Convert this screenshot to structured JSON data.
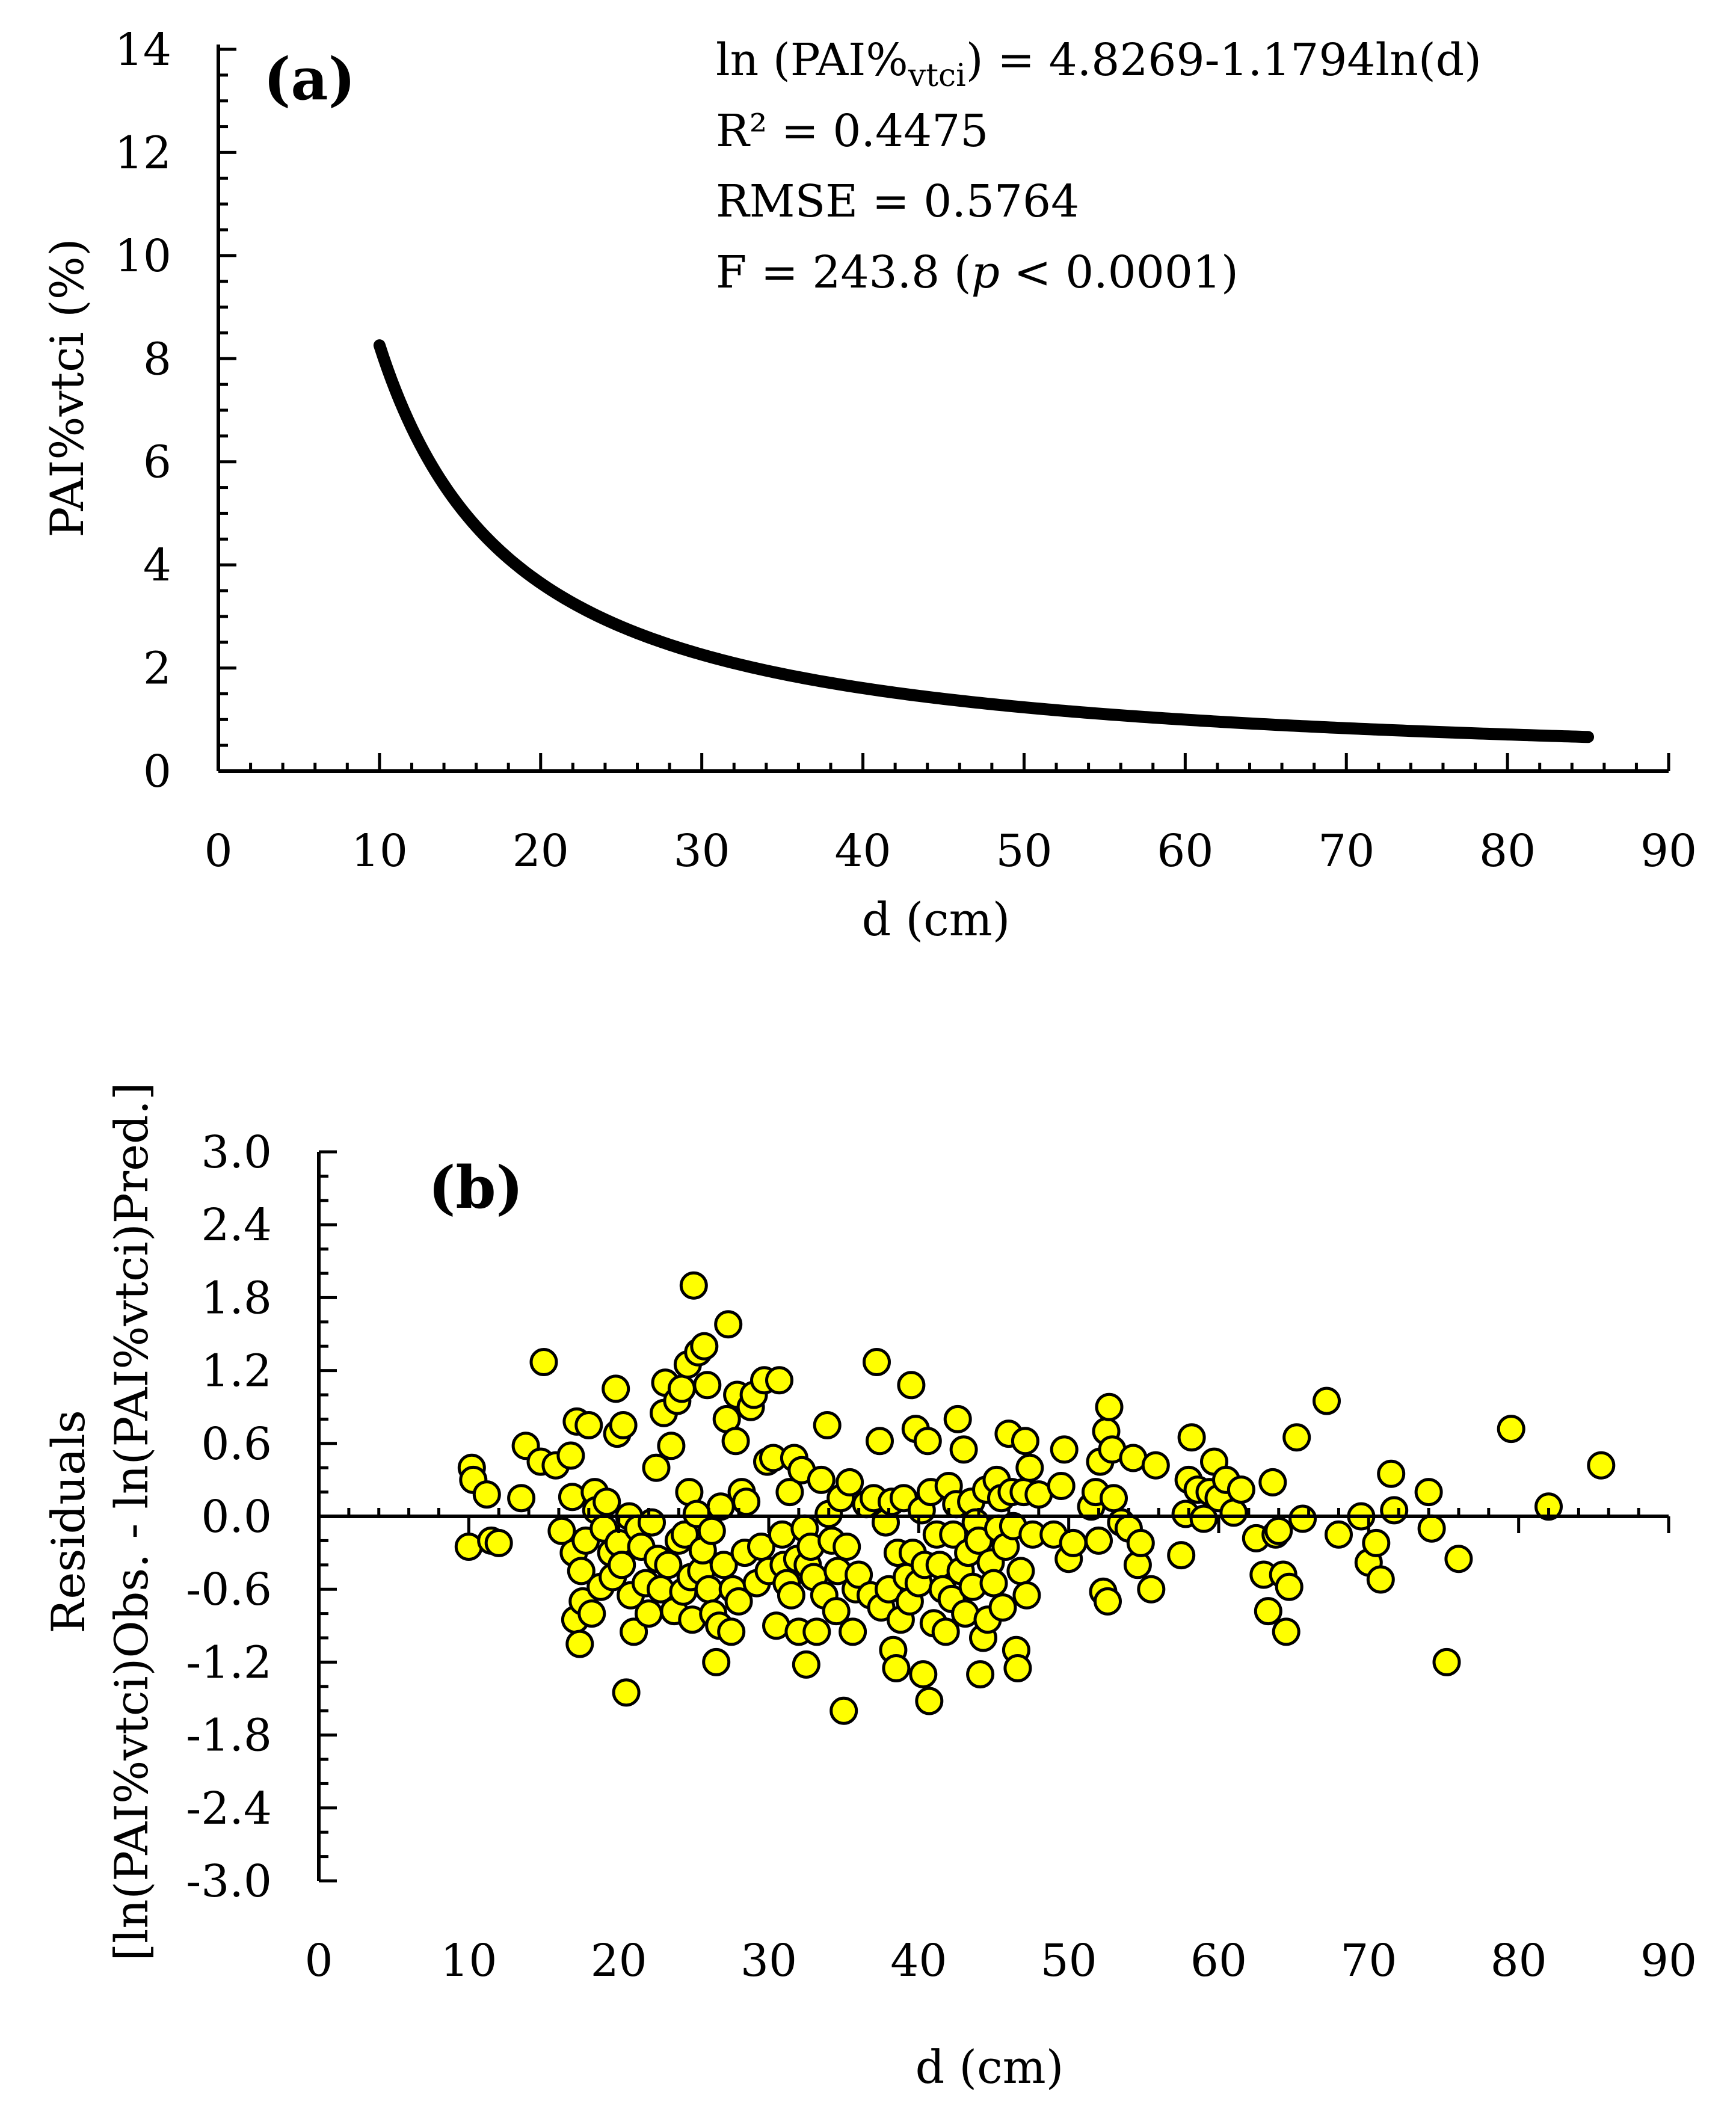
{
  "chart_data": [
    {
      "type": "line",
      "panel_label": "(a)",
      "xlabel": "d (cm)",
      "ylabel": "PAI%vtci (%)",
      "xlim": [
        0,
        90
      ],
      "ylim": [
        0,
        14
      ],
      "x_ticks": [
        "0",
        "10",
        "20",
        "30",
        "40",
        "50",
        "60",
        "70",
        "80",
        "90"
      ],
      "y_ticks": [
        "0",
        "2",
        "4",
        "6",
        "8",
        "10",
        "12",
        "14"
      ],
      "model": {
        "intercept": 4.8269,
        "slope": -1.1794,
        "d_min": 10,
        "d_max": 85
      },
      "annotations": {
        "equation_prefix": "ln (PAI%",
        "equation_sub": "vtci",
        "equation_suffix": ") = 4.8269-1.1794ln(d)",
        "r2": "R² = 0.4475",
        "rmse": "RMSE = 0.5764",
        "f_prefix": "F = 243.8 (",
        "f_p": "p",
        "f_suffix": " < 0.0001)"
      }
    },
    {
      "type": "scatter",
      "panel_label": "(b)",
      "xlabel": "d (cm)",
      "ylabel_line1": "Residuals",
      "ylabel_line2": "[ln(PAI%vtci)Obs. - ln(PAI%vtci)Pred.]",
      "xlim": [
        0,
        90
      ],
      "ylim": [
        -3.0,
        3.0
      ],
      "x_ticks": [
        "0",
        "10",
        "20",
        "30",
        "40",
        "50",
        "60",
        "70",
        "80",
        "90"
      ],
      "y_ticks": [
        "3.0",
        "2.4",
        "1.8",
        "1.2",
        "0.6",
        "0.0",
        "-0.6",
        "-1.2",
        "-1.8",
        "-2.4",
        "-3.0"
      ],
      "point_color": "#ffff00",
      "points": [
        [
          10.0,
          -0.25
        ],
        [
          10.2,
          0.4
        ],
        [
          10.3,
          0.3
        ],
        [
          11.2,
          0.18
        ],
        [
          11.5,
          -0.2
        ],
        [
          12.0,
          -0.22
        ],
        [
          13.5,
          0.15
        ],
        [
          13.8,
          0.58
        ],
        [
          14.8,
          0.45
        ],
        [
          15.0,
          1.27
        ],
        [
          15.8,
          0.42
        ],
        [
          16.2,
          -0.12
        ],
        [
          16.8,
          0.5
        ],
        [
          16.9,
          0.16
        ],
        [
          17.0,
          -0.3
        ],
        [
          17.1,
          -0.85
        ],
        [
          17.2,
          0.78
        ],
        [
          17.4,
          -1.05
        ],
        [
          17.5,
          -0.45
        ],
        [
          17.6,
          -0.7
        ],
        [
          17.8,
          -0.2
        ],
        [
          18.0,
          0.75
        ],
        [
          18.2,
          -0.8
        ],
        [
          18.4,
          0.2
        ],
        [
          18.5,
          0.05
        ],
        [
          18.8,
          -0.58
        ],
        [
          19.0,
          -0.1
        ],
        [
          19.2,
          0.12
        ],
        [
          19.5,
          -0.3
        ],
        [
          19.6,
          -0.5
        ],
        [
          19.8,
          1.05
        ],
        [
          19.9,
          0.68
        ],
        [
          20.0,
          -0.22
        ],
        [
          20.2,
          -0.4
        ],
        [
          20.3,
          0.75
        ],
        [
          20.5,
          -1.45
        ],
        [
          20.7,
          0.0
        ],
        [
          20.8,
          -0.65
        ],
        [
          21.0,
          -0.95
        ],
        [
          21.3,
          -0.1
        ],
        [
          21.5,
          -0.25
        ],
        [
          21.8,
          -0.55
        ],
        [
          22.0,
          -0.8
        ],
        [
          22.2,
          -0.05
        ],
        [
          22.5,
          0.4
        ],
        [
          22.6,
          -0.35
        ],
        [
          22.8,
          -0.6
        ],
        [
          23.0,
          0.85
        ],
        [
          23.1,
          1.1
        ],
        [
          23.3,
          -0.4
        ],
        [
          23.5,
          0.58
        ],
        [
          23.7,
          -0.78
        ],
        [
          23.9,
          0.95
        ],
        [
          24.0,
          -0.2
        ],
        [
          24.2,
          1.05
        ],
        [
          24.3,
          -0.62
        ],
        [
          24.4,
          -0.15
        ],
        [
          24.6,
          1.25
        ],
        [
          24.7,
          0.2
        ],
        [
          24.8,
          -0.5
        ],
        [
          24.9,
          -0.85
        ],
        [
          25.0,
          1.9
        ],
        [
          25.2,
          0.02
        ],
        [
          25.3,
          1.35
        ],
        [
          25.5,
          -0.45
        ],
        [
          25.6,
          -0.28
        ],
        [
          25.7,
          1.4
        ],
        [
          25.9,
          1.08
        ],
        [
          26.0,
          -0.6
        ],
        [
          26.2,
          -0.12
        ],
        [
          26.3,
          -0.8
        ],
        [
          26.5,
          -1.2
        ],
        [
          26.7,
          -0.9
        ],
        [
          26.8,
          0.08
        ],
        [
          27.0,
          -0.4
        ],
        [
          27.2,
          0.8
        ],
        [
          27.3,
          1.58
        ],
        [
          27.5,
          -0.95
        ],
        [
          27.6,
          -0.6
        ],
        [
          27.8,
          0.62
        ],
        [
          27.9,
          1.0
        ],
        [
          28.0,
          -0.7
        ],
        [
          28.2,
          0.2
        ],
        [
          28.4,
          -0.3
        ],
        [
          28.5,
          0.12
        ],
        [
          28.8,
          0.9
        ],
        [
          29.0,
          1.0
        ],
        [
          29.2,
          -0.55
        ],
        [
          29.5,
          -0.25
        ],
        [
          29.7,
          1.12
        ],
        [
          29.9,
          0.45
        ],
        [
          30.0,
          -0.45
        ],
        [
          30.3,
          0.48
        ],
        [
          30.5,
          -0.9
        ],
        [
          30.7,
          1.12
        ],
        [
          30.9,
          -0.15
        ],
        [
          31.0,
          -0.4
        ],
        [
          31.2,
          -0.55
        ],
        [
          31.4,
          0.2
        ],
        [
          31.5,
          -0.65
        ],
        [
          31.7,
          0.48
        ],
        [
          31.9,
          -0.35
        ],
        [
          32.0,
          -0.95
        ],
        [
          32.2,
          0.38
        ],
        [
          32.4,
          -0.1
        ],
        [
          32.5,
          -1.22
        ],
        [
          32.6,
          -0.4
        ],
        [
          32.8,
          -0.25
        ],
        [
          33.0,
          -0.5
        ],
        [
          33.2,
          -0.95
        ],
        [
          33.5,
          0.3
        ],
        [
          33.7,
          -0.65
        ],
        [
          33.9,
          0.75
        ],
        [
          34.0,
          0.02
        ],
        [
          34.2,
          -0.2
        ],
        [
          34.5,
          -0.78
        ],
        [
          34.6,
          -0.45
        ],
        [
          34.8,
          0.15
        ],
        [
          35.0,
          -1.6
        ],
        [
          35.2,
          -0.25
        ],
        [
          35.4,
          0.28
        ],
        [
          35.6,
          -0.95
        ],
        [
          35.8,
          -0.6
        ],
        [
          36.0,
          -0.48
        ],
        [
          36.5,
          0.1
        ],
        [
          36.8,
          -0.65
        ],
        [
          37.0,
          0.15
        ],
        [
          37.2,
          1.27
        ],
        [
          37.4,
          0.62
        ],
        [
          37.5,
          -0.75
        ],
        [
          37.8,
          -0.05
        ],
        [
          38.0,
          -0.6
        ],
        [
          38.2,
          0.12
        ],
        [
          38.3,
          -1.1
        ],
        [
          38.5,
          -1.25
        ],
        [
          38.6,
          -0.3
        ],
        [
          38.8,
          -0.85
        ],
        [
          39.0,
          0.15
        ],
        [
          39.2,
          -0.5
        ],
        [
          39.4,
          -0.7
        ],
        [
          39.5,
          1.08
        ],
        [
          39.6,
          -0.3
        ],
        [
          39.8,
          0.72
        ],
        [
          40.0,
          -0.55
        ],
        [
          40.2,
          0.05
        ],
        [
          40.3,
          -1.3
        ],
        [
          40.4,
          -0.4
        ],
        [
          40.6,
          0.62
        ],
        [
          40.7,
          -1.52
        ],
        [
          40.8,
          0.2
        ],
        [
          41.0,
          -0.88
        ],
        [
          41.2,
          -0.15
        ],
        [
          41.4,
          -0.4
        ],
        [
          41.6,
          -0.6
        ],
        [
          41.8,
          -0.95
        ],
        [
          42.0,
          0.25
        ],
        [
          42.2,
          -0.68
        ],
        [
          42.3,
          -0.15
        ],
        [
          42.5,
          0.1
        ],
        [
          42.6,
          0.8
        ],
        [
          42.8,
          -0.45
        ],
        [
          43.0,
          0.55
        ],
        [
          43.1,
          -0.8
        ],
        [
          43.3,
          -0.3
        ],
        [
          43.5,
          0.12
        ],
        [
          43.6,
          -0.58
        ],
        [
          43.8,
          -0.05
        ],
        [
          44.0,
          -0.2
        ],
        [
          44.1,
          -1.3
        ],
        [
          44.3,
          -1.0
        ],
        [
          44.5,
          0.22
        ],
        [
          44.6,
          -0.85
        ],
        [
          44.8,
          -0.38
        ],
        [
          45.0,
          -0.55
        ],
        [
          45.2,
          0.3
        ],
        [
          45.3,
          -0.1
        ],
        [
          45.5,
          0.15
        ],
        [
          45.6,
          -0.75
        ],
        [
          45.8,
          -0.25
        ],
        [
          46.0,
          0.68
        ],
        [
          46.2,
          0.2
        ],
        [
          46.3,
          -0.08
        ],
        [
          46.5,
          -1.1
        ],
        [
          46.6,
          -1.25
        ],
        [
          46.8,
          -0.45
        ],
        [
          47.0,
          0.2
        ],
        [
          47.1,
          0.62
        ],
        [
          47.2,
          -0.65
        ],
        [
          47.4,
          0.4
        ],
        [
          47.6,
          -0.15
        ],
        [
          48.0,
          0.18
        ],
        [
          49.0,
          -0.15
        ],
        [
          49.5,
          0.25
        ],
        [
          49.7,
          0.55
        ],
        [
          50.0,
          -0.35
        ],
        [
          50.3,
          -0.22
        ],
        [
          51.5,
          0.08
        ],
        [
          51.8,
          0.2
        ],
        [
          52.0,
          -0.2
        ],
        [
          52.1,
          0.45
        ],
        [
          52.3,
          -0.62
        ],
        [
          52.5,
          0.7
        ],
        [
          52.6,
          -0.7
        ],
        [
          52.7,
          0.9
        ],
        [
          52.9,
          0.55
        ],
        [
          53.0,
          0.15
        ],
        [
          53.5,
          -0.05
        ],
        [
          54.0,
          -0.1
        ],
        [
          54.3,
          0.48
        ],
        [
          54.6,
          -0.4
        ],
        [
          54.8,
          -0.22
        ],
        [
          55.5,
          -0.6
        ],
        [
          55.8,
          0.42
        ],
        [
          57.5,
          -0.32
        ],
        [
          57.8,
          0.02
        ],
        [
          58.0,
          0.3
        ],
        [
          58.2,
          0.65
        ],
        [
          58.6,
          0.22
        ],
        [
          59.0,
          -0.02
        ],
        [
          59.4,
          0.2
        ],
        [
          59.7,
          0.45
        ],
        [
          60.0,
          0.15
        ],
        [
          60.5,
          0.3
        ],
        [
          61.0,
          0.03
        ],
        [
          61.5,
          0.22
        ],
        [
          62.5,
          -0.18
        ],
        [
          63.0,
          -0.48
        ],
        [
          63.3,
          -0.78
        ],
        [
          63.6,
          0.28
        ],
        [
          63.8,
          -0.15
        ],
        [
          64.0,
          -0.12
        ],
        [
          64.3,
          -0.48
        ],
        [
          64.5,
          -0.95
        ],
        [
          64.7,
          -0.58
        ],
        [
          65.2,
          0.65
        ],
        [
          65.6,
          -0.02
        ],
        [
          67.2,
          0.95
        ],
        [
          68.0,
          -0.15
        ],
        [
          69.5,
          0.0
        ],
        [
          70.0,
          -0.38
        ],
        [
          70.5,
          -0.22
        ],
        [
          70.8,
          -0.52
        ],
        [
          71.5,
          0.35
        ],
        [
          71.7,
          0.05
        ],
        [
          74.0,
          0.2
        ],
        [
          74.2,
          -0.1
        ],
        [
          75.2,
          -1.2
        ],
        [
          76.0,
          -0.35
        ],
        [
          79.5,
          0.72
        ],
        [
          82.0,
          0.08
        ],
        [
          85.5,
          0.42
        ]
      ]
    }
  ]
}
